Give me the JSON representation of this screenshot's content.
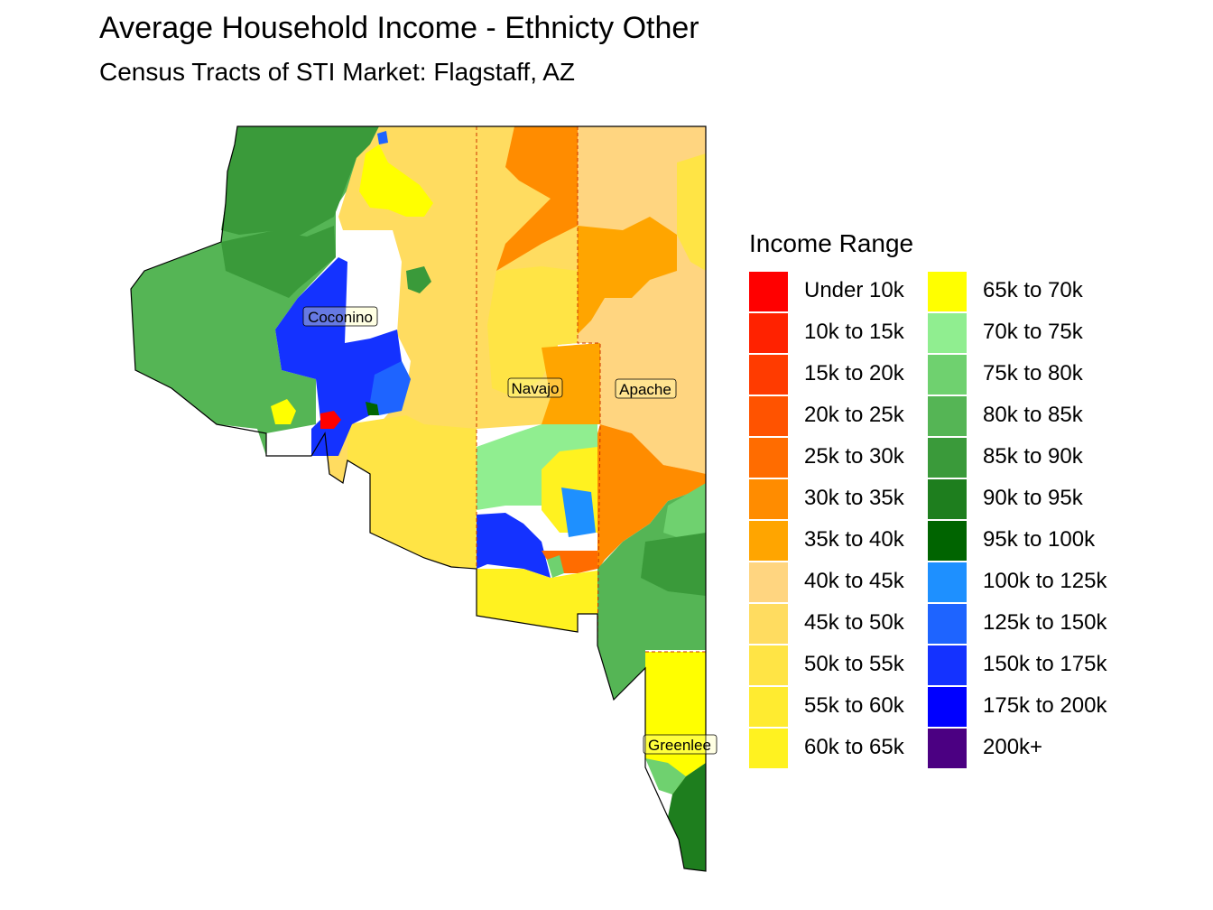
{
  "title": "Average Household Income - Ethnicty Other",
  "subtitle": "Census Tracts of STI Market: Flagstaff, AZ",
  "legend": {
    "title": "Income Range",
    "items": [
      {
        "label": "Under 10k",
        "color": "#FF0000"
      },
      {
        "label": "10k to 15k",
        "color": "#FF2200"
      },
      {
        "label": "15k to 20k",
        "color": "#FF3B00"
      },
      {
        "label": "20k to 25k",
        "color": "#FF5300"
      },
      {
        "label": "25k to 30k",
        "color": "#FF6C00"
      },
      {
        "label": "30k to 35k",
        "color": "#FF8C00"
      },
      {
        "label": "35k to 40k",
        "color": "#FFA500"
      },
      {
        "label": "40k to 45k",
        "color": "#FFD580"
      },
      {
        "label": "45k to 50k",
        "color": "#FFDC60"
      },
      {
        "label": "50k to 55k",
        "color": "#FFE445"
      },
      {
        "label": "55k to 60k",
        "color": "#FFEB30"
      },
      {
        "label": "60k to 65k",
        "color": "#FFF220"
      },
      {
        "label": "65k to 70k",
        "color": "#FFFF00"
      },
      {
        "label": "70k to 75k",
        "color": "#90EE90"
      },
      {
        "label": "75k to 80k",
        "color": "#6FD16F"
      },
      {
        "label": "80k to 85k",
        "color": "#55B555"
      },
      {
        "label": "85k to 90k",
        "color": "#3A9A3A"
      },
      {
        "label": "90k to 95k",
        "color": "#1E7E1E"
      },
      {
        "label": "95k to 100k",
        "color": "#006400"
      },
      {
        "label": "100k to 125k",
        "color": "#1E90FF"
      },
      {
        "label": "125k to 150k",
        "color": "#1E64FF"
      },
      {
        "label": "150k to 175k",
        "color": "#1432FF"
      },
      {
        "label": "175k to 200k",
        "color": "#0000FF"
      },
      {
        "label": "200k+",
        "color": "#4B0082"
      }
    ]
  },
  "counties": [
    {
      "name": "Coconino"
    },
    {
      "name": "Navajo"
    },
    {
      "name": "Apache"
    },
    {
      "name": "Greenlee"
    }
  ]
}
